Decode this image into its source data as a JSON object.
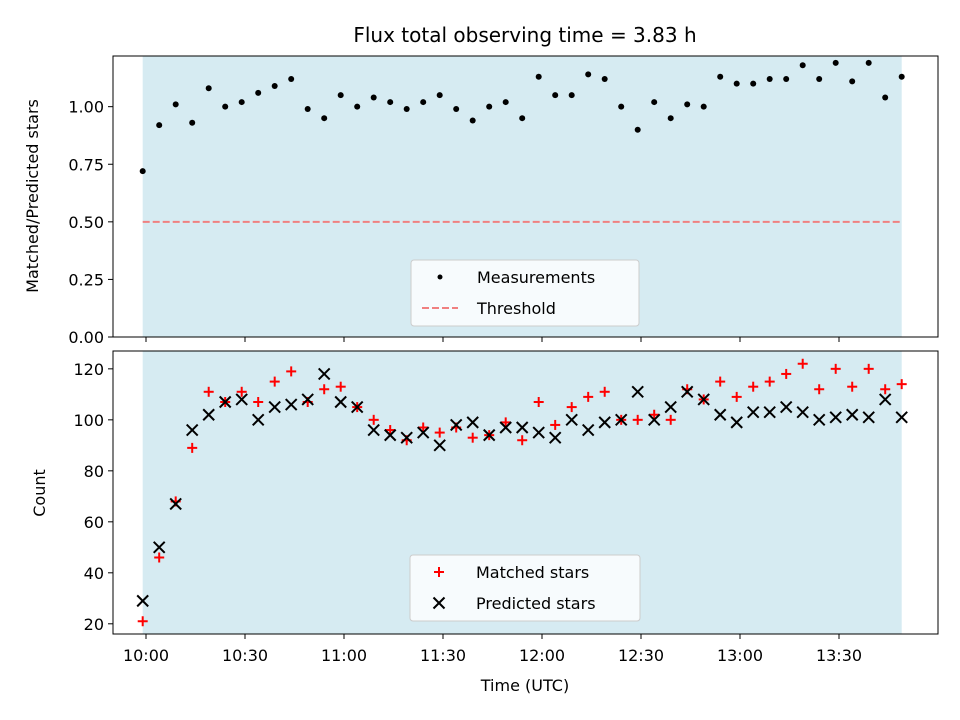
{
  "chart_data": [
    {
      "type": "scatter",
      "title": "Flux total observing time = 3.83 h",
      "xlabel": "",
      "ylabel": "Matched/Predicted stars",
      "x_range": [
        "09:50",
        "14:00"
      ],
      "ylim": [
        0,
        1.22
      ],
      "yticks": [
        "0.00",
        "0.25",
        "0.50",
        "0.75",
        "1.00"
      ],
      "xticks": [
        "10:00",
        "10:30",
        "11:00",
        "11:30",
        "12:00",
        "12:30",
        "13:00",
        "13:30"
      ],
      "xticklabels_visible": false,
      "observing_window": [
        "09:59",
        "13:49"
      ],
      "observing_window_color": "#add8e6",
      "legend_position": "lower center",
      "series": [
        {
          "name": "Measurements",
          "kind": "points",
          "color": "#000000",
          "x": [
            "09:59",
            "10:04",
            "10:09",
            "10:14",
            "10:19",
            "10:24",
            "10:29",
            "10:34",
            "10:39",
            "10:44",
            "10:49",
            "10:54",
            "10:59",
            "11:04",
            "11:09",
            "11:14",
            "11:19",
            "11:24",
            "11:29",
            "11:34",
            "11:39",
            "11:44",
            "11:49",
            "11:54",
            "11:59",
            "12:04",
            "12:09",
            "12:14",
            "12:19",
            "12:24",
            "12:29",
            "12:34",
            "12:39",
            "12:44",
            "12:49",
            "12:54",
            "12:59",
            "13:04",
            "13:09",
            "13:14",
            "13:19",
            "13:24",
            "13:29",
            "13:34",
            "13:39",
            "13:44",
            "13:49"
          ],
          "y": [
            0.72,
            0.92,
            1.01,
            0.93,
            1.08,
            1.0,
            1.02,
            1.06,
            1.09,
            1.12,
            0.99,
            0.95,
            1.05,
            1.0,
            1.04,
            1.02,
            0.99,
            1.02,
            1.05,
            0.99,
            0.94,
            1.0,
            1.02,
            0.95,
            1.13,
            1.05,
            1.05,
            1.14,
            1.12,
            1.0,
            0.9,
            1.02,
            0.95,
            1.01,
            1.0,
            1.13,
            1.1,
            1.1,
            1.12,
            1.12,
            1.18,
            1.12,
            1.19,
            1.11,
            1.19,
            1.04,
            1.13
          ]
        },
        {
          "name": "Threshold",
          "kind": "dashed-line",
          "color": "#f08080",
          "x": [
            "09:59",
            "13:49"
          ],
          "y": [
            0.5,
            0.5
          ]
        }
      ]
    },
    {
      "type": "scatter",
      "title": "",
      "xlabel": "Time (UTC)",
      "ylabel": "Count",
      "x_range": [
        "09:50",
        "14:00"
      ],
      "ylim": [
        16,
        127
      ],
      "yticks": [
        "20",
        "40",
        "60",
        "80",
        "100",
        "120"
      ],
      "xticks": [
        "10:00",
        "10:30",
        "11:00",
        "11:30",
        "12:00",
        "12:30",
        "13:00",
        "13:30"
      ],
      "xticklabels_visible": true,
      "observing_window": [
        "09:59",
        "13:49"
      ],
      "observing_window_color": "#add8e6",
      "legend_position": "lower center",
      "series": [
        {
          "name": "Matched stars",
          "kind": "plus",
          "color": "#ff0000",
          "x": [
            "09:59",
            "10:04",
            "10:09",
            "10:14",
            "10:19",
            "10:24",
            "10:29",
            "10:34",
            "10:39",
            "10:44",
            "10:49",
            "10:54",
            "10:59",
            "11:04",
            "11:09",
            "11:14",
            "11:19",
            "11:24",
            "11:29",
            "11:34",
            "11:39",
            "11:44",
            "11:49",
            "11:54",
            "11:59",
            "12:04",
            "12:09",
            "12:14",
            "12:19",
            "12:24",
            "12:29",
            "12:34",
            "12:39",
            "12:44",
            "12:49",
            "12:54",
            "12:59",
            "13:04",
            "13:09",
            "13:14",
            "13:19",
            "13:24",
            "13:29",
            "13:34",
            "13:39",
            "13:44",
            "13:49"
          ],
          "y": [
            21,
            46,
            68,
            89,
            111,
            107,
            111,
            107,
            115,
            119,
            107,
            112,
            113,
            105,
            100,
            96,
            92,
            97,
            95,
            97,
            93,
            94,
            99,
            92,
            107,
            98,
            105,
            109,
            111,
            100,
            100,
            102,
            100,
            112,
            108,
            115,
            109,
            113,
            115,
            118,
            122,
            112,
            120,
            113,
            120,
            112,
            114
          ]
        },
        {
          "name": "Predicted stars",
          "kind": "cross",
          "color": "#000000",
          "x": [
            "09:59",
            "10:04",
            "10:09",
            "10:14",
            "10:19",
            "10:24",
            "10:29",
            "10:34",
            "10:39",
            "10:44",
            "10:49",
            "10:54",
            "10:59",
            "11:04",
            "11:09",
            "11:14",
            "11:19",
            "11:24",
            "11:29",
            "11:34",
            "11:39",
            "11:44",
            "11:49",
            "11:54",
            "11:59",
            "12:04",
            "12:09",
            "12:14",
            "12:19",
            "12:24",
            "12:29",
            "12:34",
            "12:39",
            "12:44",
            "12:49",
            "12:54",
            "12:59",
            "13:04",
            "13:09",
            "13:14",
            "13:19",
            "13:24",
            "13:29",
            "13:34",
            "13:39",
            "13:44",
            "13:49"
          ],
          "y": [
            29,
            50,
            67,
            96,
            102,
            107,
            108,
            100,
            105,
            106,
            108,
            118,
            107,
            105,
            96,
            94,
            93,
            95,
            90,
            98,
            99,
            94,
            97,
            97,
            95,
            93,
            100,
            96,
            99,
            100,
            111,
            100,
            105,
            111,
            108,
            102,
            99,
            103,
            103,
            105,
            103,
            100,
            101,
            102,
            101,
            108,
            101
          ]
        }
      ]
    }
  ]
}
